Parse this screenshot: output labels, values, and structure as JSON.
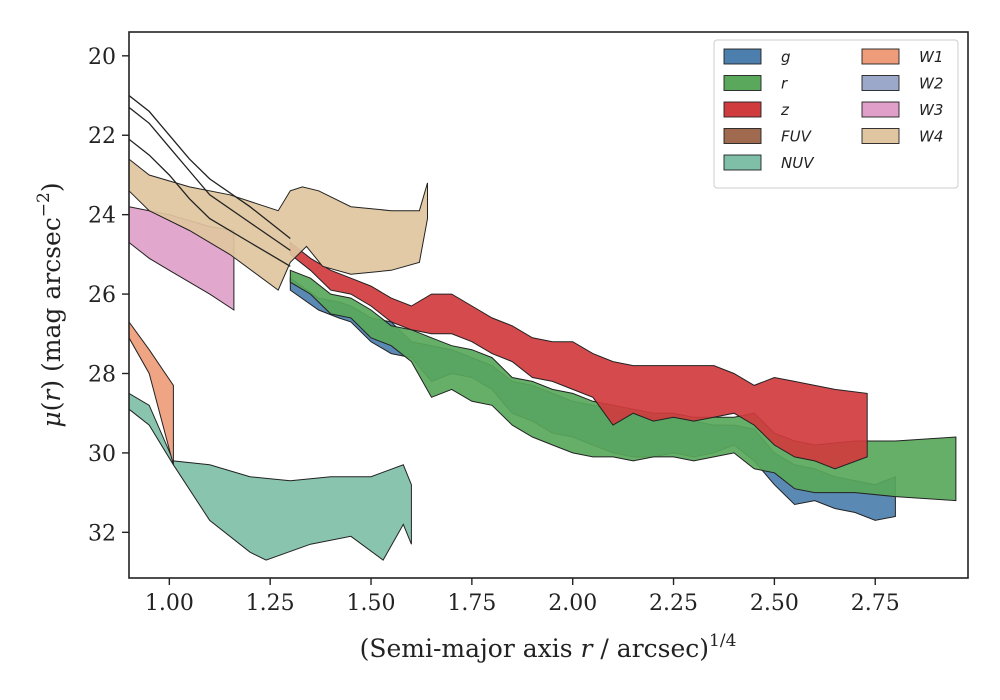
{
  "chart_data": {
    "type": "area",
    "xlabel": "(Semi-major axis r / arcsec)",
    "xlabel_parts": {
      "pre": "(Semi-major axis ",
      "var": "r",
      "post": " / arcsec)",
      "sup": "1/4"
    },
    "ylabel": "μ(r) (mag arcsec⁻²)",
    "ylabel_parts": {
      "mu": "μ",
      "open": "(",
      "var": "r",
      "close": ") (mag arcsec",
      "sup": "−2",
      "end": ")"
    },
    "xlim": [
      0.9,
      2.98
    ],
    "ylim": [
      33.15,
      19.4
    ],
    "y_inverted": true,
    "xticks": [
      1.0,
      1.25,
      1.5,
      1.75,
      2.0,
      2.25,
      2.5,
      2.75
    ],
    "xtick_labels": [
      "1.00",
      "1.25",
      "1.50",
      "1.75",
      "2.00",
      "2.25",
      "2.50",
      "2.75"
    ],
    "yticks": [
      20,
      22,
      24,
      26,
      28,
      30,
      32
    ],
    "ytick_labels": [
      "20",
      "22",
      "24",
      "26",
      "28",
      "30",
      "32"
    ],
    "grid": false,
    "legend_position": "top-right",
    "legend_columns": 2,
    "series": [
      {
        "name": "g",
        "color": "#4c7fae",
        "upper": [
          [
            1.3,
            25.6
          ],
          [
            1.37,
            26.1
          ],
          [
            1.42,
            26.2
          ],
          [
            1.45,
            26.3
          ],
          [
            1.5,
            26.6
          ],
          [
            1.55,
            26.7
          ],
          [
            1.6,
            27.2
          ],
          [
            1.65,
            27.3
          ],
          [
            1.7,
            27.4
          ],
          [
            1.75,
            27.6
          ],
          [
            1.8,
            27.8
          ],
          [
            1.85,
            28.2
          ],
          [
            1.9,
            28.3
          ],
          [
            1.95,
            28.5
          ],
          [
            2.0,
            28.7
          ],
          [
            2.05,
            28.8
          ],
          [
            2.1,
            28.9
          ],
          [
            2.15,
            29.0
          ],
          [
            2.2,
            29.1
          ],
          [
            2.25,
            29.1
          ],
          [
            2.3,
            29.2
          ],
          [
            2.35,
            29.3
          ],
          [
            2.4,
            29.3
          ],
          [
            2.45,
            29.4
          ],
          [
            2.5,
            30.0
          ],
          [
            2.55,
            30.3
          ],
          [
            2.6,
            30.4
          ],
          [
            2.65,
            30.6
          ],
          [
            2.7,
            30.7
          ],
          [
            2.75,
            30.8
          ],
          [
            2.8,
            30.6
          ]
        ],
        "lower": [
          [
            1.3,
            25.9
          ],
          [
            1.37,
            26.4
          ],
          [
            1.42,
            26.6
          ],
          [
            1.45,
            26.7
          ],
          [
            1.5,
            27.2
          ],
          [
            1.55,
            27.5
          ],
          [
            1.6,
            27.6
          ],
          [
            1.65,
            28.2
          ],
          [
            1.7,
            28.0
          ],
          [
            1.75,
            28.1
          ],
          [
            1.8,
            28.4
          ],
          [
            1.85,
            29.0
          ],
          [
            1.9,
            29.2
          ],
          [
            1.95,
            29.5
          ],
          [
            2.0,
            29.6
          ],
          [
            2.05,
            29.8
          ],
          [
            2.1,
            30.0
          ],
          [
            2.15,
            30.1
          ],
          [
            2.2,
            30.1
          ],
          [
            2.25,
            30.0
          ],
          [
            2.3,
            30.1
          ],
          [
            2.35,
            30.0
          ],
          [
            2.4,
            29.8
          ],
          [
            2.45,
            30.2
          ],
          [
            2.5,
            30.8
          ],
          [
            2.55,
            31.3
          ],
          [
            2.6,
            31.2
          ],
          [
            2.65,
            31.4
          ],
          [
            2.7,
            31.5
          ],
          [
            2.75,
            31.7
          ],
          [
            2.8,
            31.6
          ]
        ]
      },
      {
        "name": "r",
        "color": "#59a85b",
        "upper": [
          [
            1.3,
            25.4
          ],
          [
            1.35,
            25.6
          ],
          [
            1.4,
            26.0
          ],
          [
            1.45,
            26.1
          ],
          [
            1.5,
            26.4
          ],
          [
            1.55,
            26.8
          ],
          [
            1.6,
            26.9
          ],
          [
            1.65,
            27.1
          ],
          [
            1.7,
            27.3
          ],
          [
            1.75,
            27.4
          ],
          [
            1.8,
            27.6
          ],
          [
            1.85,
            28.1
          ],
          [
            1.9,
            28.2
          ],
          [
            1.95,
            28.4
          ],
          [
            2.0,
            28.5
          ],
          [
            2.05,
            28.7
          ],
          [
            2.1,
            28.8
          ],
          [
            2.15,
            28.9
          ],
          [
            2.2,
            29.0
          ],
          [
            2.25,
            29.0
          ],
          [
            2.3,
            29.1
          ],
          [
            2.35,
            29.1
          ],
          [
            2.4,
            29.1
          ],
          [
            2.45,
            29.0
          ],
          [
            2.5,
            29.5
          ],
          [
            2.55,
            29.7
          ],
          [
            2.6,
            29.8
          ],
          [
            2.7,
            29.7
          ],
          [
            2.8,
            29.7
          ],
          [
            2.95,
            29.6
          ]
        ],
        "lower": [
          [
            1.3,
            25.7
          ],
          [
            1.35,
            26.0
          ],
          [
            1.4,
            26.5
          ],
          [
            1.45,
            26.6
          ],
          [
            1.5,
            27.1
          ],
          [
            1.55,
            27.3
          ],
          [
            1.6,
            27.7
          ],
          [
            1.65,
            28.6
          ],
          [
            1.7,
            28.4
          ],
          [
            1.75,
            28.7
          ],
          [
            1.8,
            28.8
          ],
          [
            1.85,
            29.3
          ],
          [
            1.9,
            29.6
          ],
          [
            1.95,
            29.8
          ],
          [
            2.0,
            30.0
          ],
          [
            2.05,
            30.1
          ],
          [
            2.1,
            30.1
          ],
          [
            2.15,
            30.2
          ],
          [
            2.2,
            30.1
          ],
          [
            2.25,
            30.1
          ],
          [
            2.3,
            30.2
          ],
          [
            2.35,
            30.1
          ],
          [
            2.4,
            30.0
          ],
          [
            2.45,
            30.4
          ],
          [
            2.5,
            30.5
          ],
          [
            2.55,
            30.9
          ],
          [
            2.6,
            31.0
          ],
          [
            2.7,
            31.0
          ],
          [
            2.8,
            31.1
          ],
          [
            2.95,
            31.2
          ]
        ]
      },
      {
        "name": "z",
        "color": "#d03b3e",
        "upper": [
          [
            1.3,
            24.7
          ],
          [
            1.35,
            25.1
          ],
          [
            1.4,
            25.4
          ],
          [
            1.45,
            25.6
          ],
          [
            1.5,
            25.8
          ],
          [
            1.55,
            26.1
          ],
          [
            1.6,
            26.3
          ],
          [
            1.65,
            26.0
          ],
          [
            1.7,
            26.0
          ],
          [
            1.75,
            26.3
          ],
          [
            1.8,
            26.6
          ],
          [
            1.85,
            26.8
          ],
          [
            1.9,
            27.1
          ],
          [
            1.95,
            27.2
          ],
          [
            2.0,
            27.2
          ],
          [
            2.05,
            27.5
          ],
          [
            2.1,
            27.7
          ],
          [
            2.15,
            27.8
          ],
          [
            2.2,
            27.8
          ],
          [
            2.25,
            27.8
          ],
          [
            2.3,
            27.8
          ],
          [
            2.35,
            27.8
          ],
          [
            2.4,
            28.0
          ],
          [
            2.45,
            28.3
          ],
          [
            2.5,
            28.1
          ],
          [
            2.55,
            28.2
          ],
          [
            2.6,
            28.3
          ],
          [
            2.65,
            28.4
          ],
          [
            2.73,
            28.5
          ]
        ],
        "lower": [
          [
            1.3,
            25.0
          ],
          [
            1.35,
            25.4
          ],
          [
            1.4,
            25.9
          ],
          [
            1.45,
            26.0
          ],
          [
            1.5,
            26.3
          ],
          [
            1.55,
            26.7
          ],
          [
            1.6,
            26.9
          ],
          [
            1.65,
            27.0
          ],
          [
            1.7,
            27.0
          ],
          [
            1.75,
            27.2
          ],
          [
            1.8,
            27.5
          ],
          [
            1.85,
            27.7
          ],
          [
            1.9,
            28.1
          ],
          [
            1.95,
            28.2
          ],
          [
            2.0,
            28.4
          ],
          [
            2.05,
            28.6
          ],
          [
            2.1,
            29.3
          ],
          [
            2.15,
            29.0
          ],
          [
            2.2,
            29.2
          ],
          [
            2.25,
            29.1
          ],
          [
            2.3,
            29.2
          ],
          [
            2.35,
            29.1
          ],
          [
            2.4,
            29.0
          ],
          [
            2.45,
            29.3
          ],
          [
            2.5,
            29.8
          ],
          [
            2.55,
            30.1
          ],
          [
            2.6,
            30.2
          ],
          [
            2.65,
            30.4
          ],
          [
            2.73,
            30.1
          ]
        ]
      },
      {
        "name": "NUV",
        "color": "#7fbfa8",
        "upper": [
          [
            0.9,
            28.5
          ],
          [
            0.95,
            28.8
          ],
          [
            1.01,
            30.2
          ],
          [
            1.1,
            30.3
          ],
          [
            1.2,
            30.6
          ],
          [
            1.3,
            30.7
          ],
          [
            1.4,
            30.6
          ],
          [
            1.5,
            30.6
          ],
          [
            1.58,
            30.3
          ],
          [
            1.6,
            30.8
          ]
        ],
        "lower": [
          [
            0.9,
            28.9
          ],
          [
            0.95,
            29.3
          ],
          [
            1.01,
            30.3
          ],
          [
            1.1,
            31.7
          ],
          [
            1.2,
            32.5
          ],
          [
            1.24,
            32.7
          ],
          [
            1.35,
            32.3
          ],
          [
            1.45,
            32.1
          ],
          [
            1.53,
            32.7
          ],
          [
            1.58,
            31.8
          ],
          [
            1.6,
            32.3
          ]
        ]
      },
      {
        "name": "W1",
        "color": "#ee9c7a",
        "upper": [
          [
            0.9,
            26.7
          ],
          [
            0.95,
            27.4
          ],
          [
            1.01,
            28.3
          ]
        ],
        "lower": [
          [
            0.9,
            27.1
          ],
          [
            0.95,
            28.0
          ],
          [
            1.01,
            30.3
          ]
        ]
      },
      {
        "name": "W3",
        "color": "#df9fc9",
        "upper": [
          [
            0.9,
            23.8
          ],
          [
            0.95,
            23.9
          ],
          [
            1.0,
            24.0
          ],
          [
            1.1,
            24.3
          ],
          [
            1.16,
            24.4
          ]
        ],
        "lower": [
          [
            0.9,
            24.7
          ],
          [
            0.95,
            25.1
          ],
          [
            1.0,
            25.4
          ],
          [
            1.1,
            26.0
          ],
          [
            1.16,
            26.4
          ]
        ]
      },
      {
        "name": "W4",
        "color": "#dfc5a0",
        "upper": [
          [
            0.9,
            22.6
          ],
          [
            0.95,
            23.0
          ],
          [
            1.05,
            23.3
          ],
          [
            1.15,
            23.5
          ],
          [
            1.27,
            23.9
          ],
          [
            1.3,
            23.4
          ],
          [
            1.33,
            23.3
          ],
          [
            1.37,
            23.4
          ],
          [
            1.45,
            23.8
          ],
          [
            1.55,
            23.9
          ],
          [
            1.62,
            23.9
          ],
          [
            1.64,
            23.2
          ]
        ],
        "lower": [
          [
            0.9,
            23.4
          ],
          [
            0.95,
            23.9
          ],
          [
            1.05,
            24.4
          ],
          [
            1.15,
            25.0
          ],
          [
            1.27,
            25.9
          ],
          [
            1.3,
            25.2
          ],
          [
            1.34,
            24.8
          ],
          [
            1.38,
            25.3
          ],
          [
            1.45,
            25.5
          ],
          [
            1.55,
            25.4
          ],
          [
            1.62,
            25.2
          ],
          [
            1.64,
            24.1
          ]
        ]
      },
      {
        "name": "FUV",
        "color": "#a06a4f",
        "upper": [],
        "lower": []
      },
      {
        "name": "W2",
        "color": "#9ca8c9",
        "upper": [],
        "lower": []
      }
    ],
    "black_lines": [
      [
        [
          0.9,
          21.0
        ],
        [
          0.95,
          21.4
        ],
        [
          1.0,
          22.0
        ],
        [
          1.05,
          22.6
        ],
        [
          1.1,
          23.1
        ],
        [
          1.2,
          23.8
        ],
        [
          1.3,
          24.6
        ]
      ],
      [
        [
          0.9,
          21.3
        ],
        [
          0.95,
          21.7
        ],
        [
          1.0,
          22.3
        ],
        [
          1.05,
          22.9
        ],
        [
          1.1,
          23.5
        ],
        [
          1.2,
          24.2
        ],
        [
          1.3,
          24.9
        ]
      ],
      [
        [
          0.9,
          22.1
        ],
        [
          0.95,
          22.5
        ],
        [
          1.0,
          23.0
        ],
        [
          1.05,
          23.6
        ],
        [
          1.1,
          24.1
        ],
        [
          1.2,
          24.7
        ],
        [
          1.3,
          25.3
        ]
      ]
    ]
  },
  "legend": {
    "col1": [
      {
        "label": "g",
        "color": "#4c7fae"
      },
      {
        "label": "r",
        "color": "#59a85b"
      },
      {
        "label": "z",
        "color": "#d03b3e"
      },
      {
        "label": "FUV",
        "color": "#a06a4f"
      },
      {
        "label": "NUV",
        "color": "#7fbfa8"
      }
    ],
    "col2": [
      {
        "label": "W1",
        "color": "#ee9c7a"
      },
      {
        "label": "W2",
        "color": "#9ca8c9"
      },
      {
        "label": "W3",
        "color": "#df9fc9"
      },
      {
        "label": "W4",
        "color": "#dfc5a0"
      }
    ]
  }
}
